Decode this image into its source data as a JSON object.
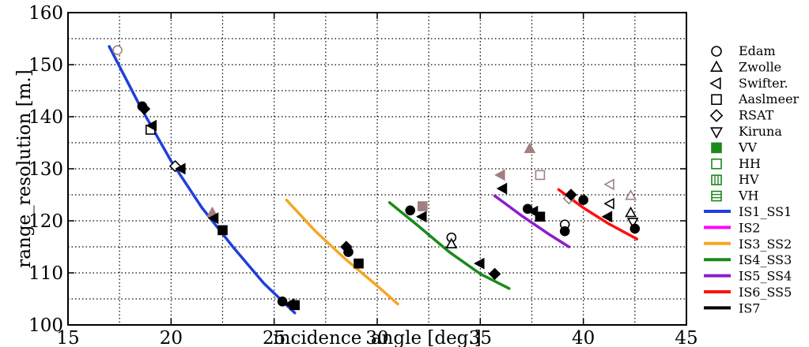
{
  "chart_data": {
    "type": "scatter",
    "title": "",
    "xlabel": "incidence_angle [deg.]",
    "ylabel": "range_resolution [m.]",
    "xlim": [
      15,
      45
    ],
    "ylim": [
      100,
      160
    ],
    "xticks": [
      15,
      20,
      25,
      30,
      35,
      40,
      45
    ],
    "yticks": [
      100,
      110,
      120,
      130,
      140,
      150,
      160
    ],
    "grid": "dotted, major and minor",
    "legend_position": "right, outside plot",
    "legend": {
      "sites": [
        {
          "label": "Edam",
          "marker": "circle"
        },
        {
          "label": "Zwolle",
          "marker": "triangle-up"
        },
        {
          "label": "Swifter.",
          "marker": "triangle-left"
        },
        {
          "label": "Aaslmeer",
          "marker": "square"
        },
        {
          "label": "RSAT",
          "marker": "diamond"
        },
        {
          "label": "Kiruna",
          "marker": "triangle-down"
        }
      ],
      "polarizations": [
        {
          "label": "VV",
          "fill": "solid",
          "color": "#1a8a1a"
        },
        {
          "label": "HH",
          "fill": "hollow",
          "color": "#1a8a1a"
        },
        {
          "label": "HV",
          "fill": "vertical-stripes",
          "color": "#1a8a1a"
        },
        {
          "label": "VH",
          "fill": "horizontal-stripes",
          "color": "#1a8a1a"
        }
      ]
    },
    "series": [
      {
        "name": "IS1_SS1",
        "color": "#1f3fdc",
        "x": [
          17.0,
          18.5,
          20,
          21.5,
          23,
          24.5,
          26.0
        ],
        "y": [
          153.5,
          142,
          131.5,
          122.5,
          115,
          108,
          102.3
        ]
      },
      {
        "name": "IS2",
        "color": "#ff00ff",
        "x": [],
        "y": []
      },
      {
        "name": "IS3_SS2",
        "color": "#f5a623",
        "x": [
          25.6,
          27,
          28.5,
          30,
          31.0
        ],
        "y": [
          124,
          118,
          112.5,
          107.5,
          104
        ]
      },
      {
        "name": "IS4_SS3",
        "color": "#1a8a1a",
        "x": [
          30.6,
          32,
          33.5,
          35,
          36.4
        ],
        "y": [
          123.5,
          119,
          114,
          109.8,
          107
        ]
      },
      {
        "name": "IS5_SS4",
        "color": "#8a1fcc",
        "x": [
          35.7,
          37,
          38.3,
          39.3
        ],
        "y": [
          124.8,
          121,
          117.5,
          115
        ]
      },
      {
        "name": "IS6_SS5",
        "color": "#ff1010",
        "x": [
          38.8,
          40,
          41.2,
          42.6
        ],
        "y": [
          126,
          122.5,
          119.5,
          116.5
        ]
      },
      {
        "name": "IS7",
        "color": "#000000",
        "x": [],
        "y": []
      }
    ],
    "points": [
      {
        "x": 17.4,
        "y": 152.8,
        "marker": "circle",
        "fill": "hollow",
        "color": "#a08080"
      },
      {
        "x": 18.6,
        "y": 142.0,
        "marker": "circle",
        "fill": "solid",
        "color": "#000000"
      },
      {
        "x": 18.7,
        "y": 141.5,
        "marker": "diamond",
        "fill": "solid",
        "color": "#000000"
      },
      {
        "x": 19.0,
        "y": 137.5,
        "marker": "square",
        "fill": "hollow",
        "color": "#000000"
      },
      {
        "x": 19.1,
        "y": 138.3,
        "marker": "triangle-left",
        "fill": "solid",
        "color": "#000000"
      },
      {
        "x": 20.2,
        "y": 130.5,
        "marker": "diamond",
        "fill": "hollow",
        "color": "#000000"
      },
      {
        "x": 20.5,
        "y": 130.0,
        "marker": "triangle-left",
        "fill": "solid",
        "color": "#000000"
      },
      {
        "x": 22.0,
        "y": 121.5,
        "marker": "triangle-up",
        "fill": "solid",
        "color": "#a08080"
      },
      {
        "x": 22.1,
        "y": 120.5,
        "marker": "triangle-left",
        "fill": "solid",
        "color": "#000000"
      },
      {
        "x": 22.5,
        "y": 118.2,
        "marker": "square",
        "fill": "solid",
        "color": "#000000"
      },
      {
        "x": 25.4,
        "y": 104.5,
        "marker": "circle",
        "fill": "solid",
        "color": "#000000"
      },
      {
        "x": 25.8,
        "y": 104.0,
        "marker": "triangle-left",
        "fill": "solid",
        "color": "#000000"
      },
      {
        "x": 26.0,
        "y": 103.8,
        "marker": "square",
        "fill": "solid",
        "color": "#000000"
      },
      {
        "x": 28.5,
        "y": 115.0,
        "marker": "diamond",
        "fill": "solid",
        "color": "#000000"
      },
      {
        "x": 28.6,
        "y": 114.0,
        "marker": "circle",
        "fill": "solid",
        "color": "#000000"
      },
      {
        "x": 29.1,
        "y": 111.8,
        "marker": "square",
        "fill": "solid",
        "color": "#000000"
      },
      {
        "x": 31.6,
        "y": 122.0,
        "marker": "circle",
        "fill": "solid",
        "color": "#000000"
      },
      {
        "x": 32.2,
        "y": 122.8,
        "marker": "square",
        "fill": "solid",
        "color": "#a08080"
      },
      {
        "x": 32.2,
        "y": 120.8,
        "marker": "triangle-left",
        "fill": "solid",
        "color": "#000000"
      },
      {
        "x": 33.6,
        "y": 116.8,
        "marker": "circle",
        "fill": "hollow",
        "color": "#000000"
      },
      {
        "x": 33.6,
        "y": 115.5,
        "marker": "triangle-up",
        "fill": "hollow",
        "color": "#000000"
      },
      {
        "x": 35.0,
        "y": 111.8,
        "marker": "triangle-left",
        "fill": "solid",
        "color": "#000000"
      },
      {
        "x": 35.7,
        "y": 109.8,
        "marker": "diamond",
        "fill": "solid",
        "color": "#000000"
      },
      {
        "x": 36.0,
        "y": 128.8,
        "marker": "triangle-left",
        "fill": "solid",
        "color": "#a08080"
      },
      {
        "x": 36.1,
        "y": 126.2,
        "marker": "triangle-left",
        "fill": "solid",
        "color": "#000000"
      },
      {
        "x": 37.3,
        "y": 122.3,
        "marker": "circle",
        "fill": "solid",
        "color": "#000000"
      },
      {
        "x": 37.4,
        "y": 133.8,
        "marker": "triangle-up",
        "fill": "solid",
        "color": "#a08080"
      },
      {
        "x": 37.6,
        "y": 121.8,
        "marker": "triangle-left",
        "fill": "solid",
        "color": "#000000"
      },
      {
        "x": 37.9,
        "y": 128.8,
        "marker": "square",
        "fill": "hollow",
        "color": "#a08080"
      },
      {
        "x": 37.9,
        "y": 120.8,
        "marker": "square",
        "fill": "solid",
        "color": "#000000"
      },
      {
        "x": 39.1,
        "y": 119.3,
        "marker": "circle",
        "fill": "hollow",
        "color": "#000000"
      },
      {
        "x": 39.1,
        "y": 118.0,
        "marker": "circle",
        "fill": "solid",
        "color": "#000000"
      },
      {
        "x": 39.3,
        "y": 124.3,
        "marker": "diamond",
        "fill": "hollow",
        "color": "#a08080"
      },
      {
        "x": 39.4,
        "y": 125.0,
        "marker": "diamond",
        "fill": "solid",
        "color": "#000000"
      },
      {
        "x": 40.0,
        "y": 124.0,
        "marker": "circle",
        "fill": "solid",
        "color": "#000000"
      },
      {
        "x": 41.2,
        "y": 120.8,
        "marker": "triangle-left",
        "fill": "solid",
        "color": "#000000"
      },
      {
        "x": 41.3,
        "y": 127.0,
        "marker": "triangle-left",
        "fill": "hollow",
        "color": "#a08080"
      },
      {
        "x": 41.3,
        "y": 123.3,
        "marker": "triangle-left",
        "fill": "hollow",
        "color": "#000000"
      },
      {
        "x": 42.3,
        "y": 124.8,
        "marker": "triangle-up",
        "fill": "hollow",
        "color": "#a08080"
      },
      {
        "x": 42.3,
        "y": 121.5,
        "marker": "triangle-up",
        "fill": "hollow",
        "color": "#000000"
      },
      {
        "x": 42.4,
        "y": 119.8,
        "marker": "triangle-down",
        "fill": "hollow",
        "color": "#000000"
      },
      {
        "x": 42.5,
        "y": 118.5,
        "marker": "circle",
        "fill": "solid",
        "color": "#000000"
      }
    ]
  }
}
